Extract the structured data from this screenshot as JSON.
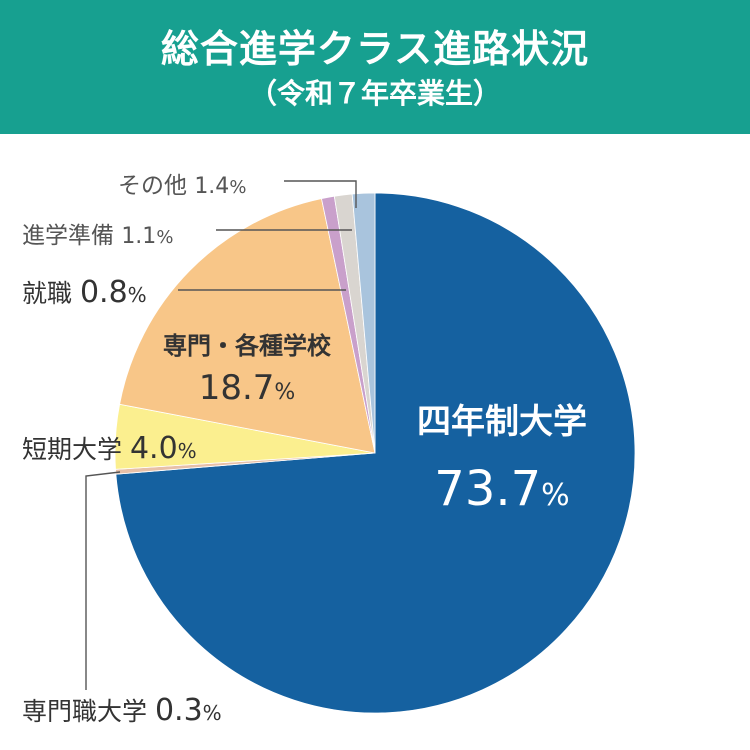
{
  "header": {
    "title": "総合進学クラス進路状況",
    "subtitle": "（令和７年卒業生）"
  },
  "colors": {
    "header_bg": "#17a090",
    "four_year": "#1561a0",
    "short_term": "#fbef8f",
    "vocational": "#f8c688",
    "job": "#c9a0cb",
    "prep": "#d9d5d0",
    "other": "#a9c4dd",
    "pro_univ": "#e7c0a8"
  },
  "chart_data": {
    "type": "pie",
    "title": "総合進学クラス進路状況",
    "subtitle": "（令和７年卒業生）",
    "unit": "%",
    "start": "12 o'clock",
    "direction": "clockwise",
    "slices": [
      {
        "label": "四年制大学",
        "value": 73.7,
        "value_text": "73.7",
        "color": "#1561a0"
      },
      {
        "label": "専門職大学",
        "value": 0.3,
        "value_text": "0.3",
        "color": "#e7c0a8"
      },
      {
        "label": "短期大学",
        "value": 4.0,
        "value_text": "4.0",
        "color": "#fbef8f"
      },
      {
        "label": "専門・各種学校",
        "value": 18.7,
        "value_text": "18.7",
        "color": "#f8c688"
      },
      {
        "label": "就職",
        "value": 0.8,
        "value_text": "0.8",
        "color": "#c9a0cb"
      },
      {
        "label": "進学準備",
        "value": 1.1,
        "value_text": "1.1",
        "color": "#d9d5d0"
      },
      {
        "label": "その他",
        "value": 1.4,
        "value_text": "1.4",
        "color": "#a9c4dd"
      }
    ]
  }
}
